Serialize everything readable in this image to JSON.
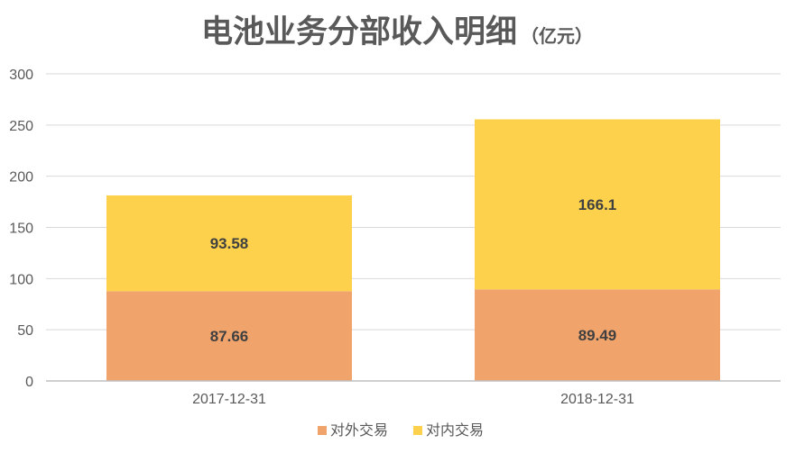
{
  "chart_data": {
    "type": "bar",
    "stacked": true,
    "title": "电池业务分部收入明细",
    "title_unit": "（亿元）",
    "categories": [
      "2017-12-31",
      "2018-12-31"
    ],
    "series": [
      {
        "name": "对外交易",
        "values": [
          87.66,
          89.49
        ],
        "labels": [
          "87.66",
          "89.49"
        ],
        "color": "#f0a46c"
      },
      {
        "name": "对内交易",
        "values": [
          93.58,
          166.1
        ],
        "labels": [
          "93.58",
          "166.1"
        ],
        "color": "#fdd14b"
      }
    ],
    "ylim": [
      0,
      300
    ],
    "yticks": [
      0,
      50,
      100,
      150,
      200,
      250,
      300
    ],
    "grid": true,
    "legend_position": "bottom",
    "colors": {
      "grid": "#d9d9d9",
      "axis": "#bfbfbf",
      "text": "#595959"
    }
  }
}
